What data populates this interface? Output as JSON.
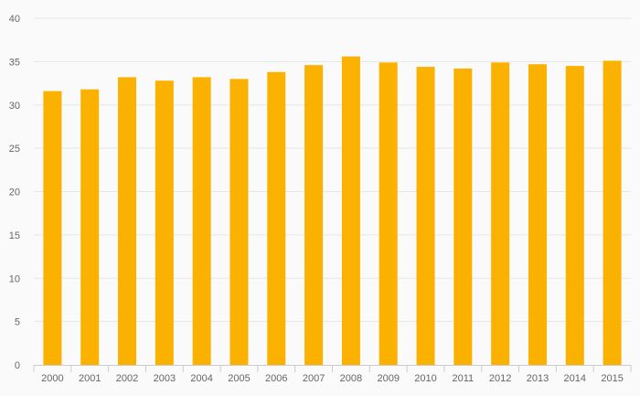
{
  "chart_data": {
    "type": "bar",
    "categories": [
      "2000",
      "2001",
      "2002",
      "2003",
      "2004",
      "2005",
      "2006",
      "2007",
      "2008",
      "2009",
      "2010",
      "2011",
      "2012",
      "2013",
      "2014",
      "2015"
    ],
    "values": [
      31.6,
      31.8,
      33.2,
      32.8,
      33.2,
      33.0,
      33.8,
      34.6,
      35.6,
      34.9,
      34.4,
      34.2,
      34.9,
      34.7,
      34.5,
      35.1
    ],
    "title": "",
    "xlabel": "",
    "ylabel": "",
    "ylim": [
      0,
      40
    ],
    "yticks": [
      0,
      5,
      10,
      15,
      20,
      25,
      30,
      35,
      40
    ],
    "grid": true,
    "legend": "none",
    "colors": {
      "bar": "#fbb100",
      "grid": "#e6e6e6",
      "axis": "#cccccc",
      "background": "#fafafa",
      "tick_text": "#666666"
    }
  }
}
